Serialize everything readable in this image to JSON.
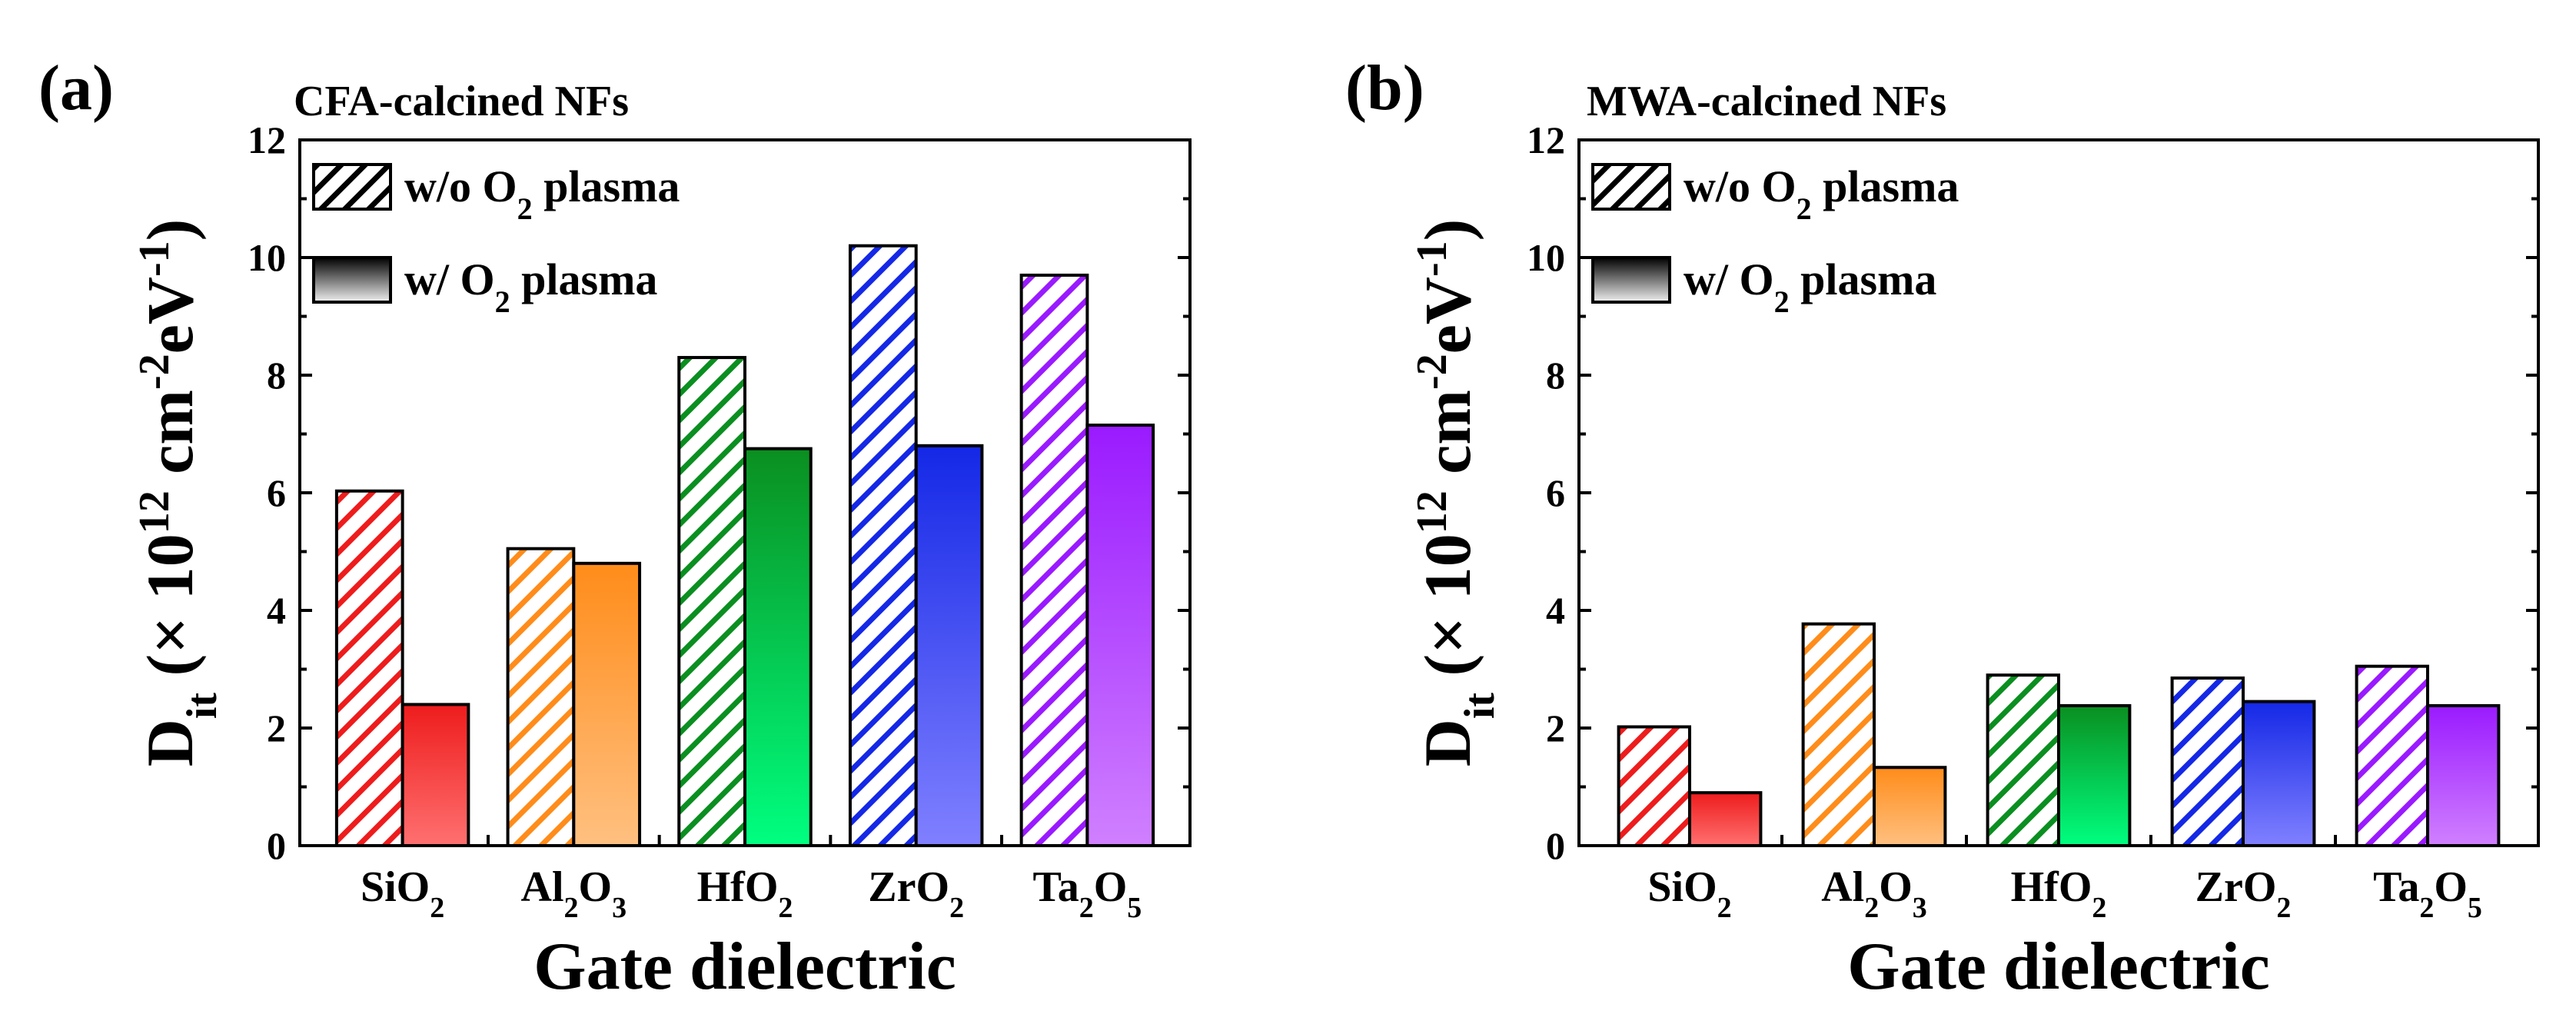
{
  "chart_data": [
    {
      "type": "bar",
      "panel_label": "(a)",
      "title": "CFA-calcined NFs",
      "categories": [
        {
          "base": "SiO",
          "s1": "2",
          "mid": "",
          "s2": ""
        },
        {
          "base": "Al",
          "s1": "2",
          "mid": "O",
          "s2": "3"
        },
        {
          "base": "HfO",
          "s1": "2",
          "mid": "",
          "s2": ""
        },
        {
          "base": "ZrO",
          "s1": "2",
          "mid": "",
          "s2": ""
        },
        {
          "base": "Ta",
          "s1": "2",
          "mid": "O",
          "s2": "5"
        }
      ],
      "series": [
        {
          "name": "w/o O2 plasma",
          "style": "hatched",
          "values": [
            6.03,
            5.05,
            8.3,
            10.2,
            9.7
          ]
        },
        {
          "name": "w/ O2 plasma",
          "style": "gradient",
          "values": [
            2.4,
            4.8,
            6.75,
            6.8,
            7.15
          ]
        }
      ],
      "colors": [
        "#ee1c1c",
        "#ff8c1a",
        "#0a8f20",
        "#1428e6",
        "#9a1aff"
      ],
      "gradient_light": [
        "#ff7070",
        "#ffc080",
        "#00ff80",
        "#8080ff",
        "#d080ff"
      ],
      "ylim": [
        0,
        12
      ],
      "yticks": [
        "0",
        "2",
        "4",
        "6",
        "8",
        "10",
        "12"
      ],
      "xlabel": "Gate dielectric",
      "ylabel": {
        "main": "D",
        "sub": "it",
        "pre": " (× 10",
        "sup1": "12",
        "mid": " cm",
        "sup2": "-2",
        "mid2": "eV",
        "sup3": "-1",
        "post": ")"
      },
      "legend": {
        "position": "top-left",
        "items": [
          {
            "text": "w/o O",
            "sub": "2",
            "rest": " plasma"
          },
          {
            "text": "w/ O",
            "sub": "2",
            "rest": " plasma"
          }
        ]
      }
    },
    {
      "type": "bar",
      "panel_label": "(b)",
      "title": "MWA-calcined NFs",
      "categories": [
        {
          "base": "SiO",
          "s1": "2",
          "mid": "",
          "s2": ""
        },
        {
          "base": "Al",
          "s1": "2",
          "mid": "O",
          "s2": "3"
        },
        {
          "base": "HfO",
          "s1": "2",
          "mid": "",
          "s2": ""
        },
        {
          "base": "ZrO",
          "s1": "2",
          "mid": "",
          "s2": ""
        },
        {
          "base": "Ta",
          "s1": "2",
          "mid": "O",
          "s2": "5"
        }
      ],
      "series": [
        {
          "name": "w/o O2 plasma",
          "style": "hatched",
          "values": [
            2.02,
            3.77,
            2.9,
            2.85,
            3.05
          ]
        },
        {
          "name": "w/ O2 plasma",
          "style": "gradient",
          "values": [
            0.9,
            1.33,
            2.38,
            2.45,
            2.38
          ]
        }
      ],
      "colors": [
        "#ee1c1c",
        "#ff8c1a",
        "#0a8f20",
        "#1428e6",
        "#9a1aff"
      ],
      "gradient_light": [
        "#ff7070",
        "#ffc080",
        "#00ff80",
        "#8080ff",
        "#d080ff"
      ],
      "ylim": [
        0,
        12
      ],
      "yticks": [
        "0",
        "2",
        "4",
        "6",
        "8",
        "10",
        "12"
      ],
      "xlabel": "Gate dielectric",
      "ylabel": {
        "main": "D",
        "sub": "it",
        "pre": " (× 10",
        "sup1": "12",
        "mid": " cm",
        "sup2": "-2",
        "mid2": "eV",
        "sup3": "-1",
        "post": ")"
      },
      "legend": {
        "position": "top-left",
        "items": [
          {
            "text": "w/o O",
            "sub": "2",
            "rest": " plasma"
          },
          {
            "text": "w/ O",
            "sub": "2",
            "rest": " plasma"
          }
        ]
      }
    }
  ]
}
